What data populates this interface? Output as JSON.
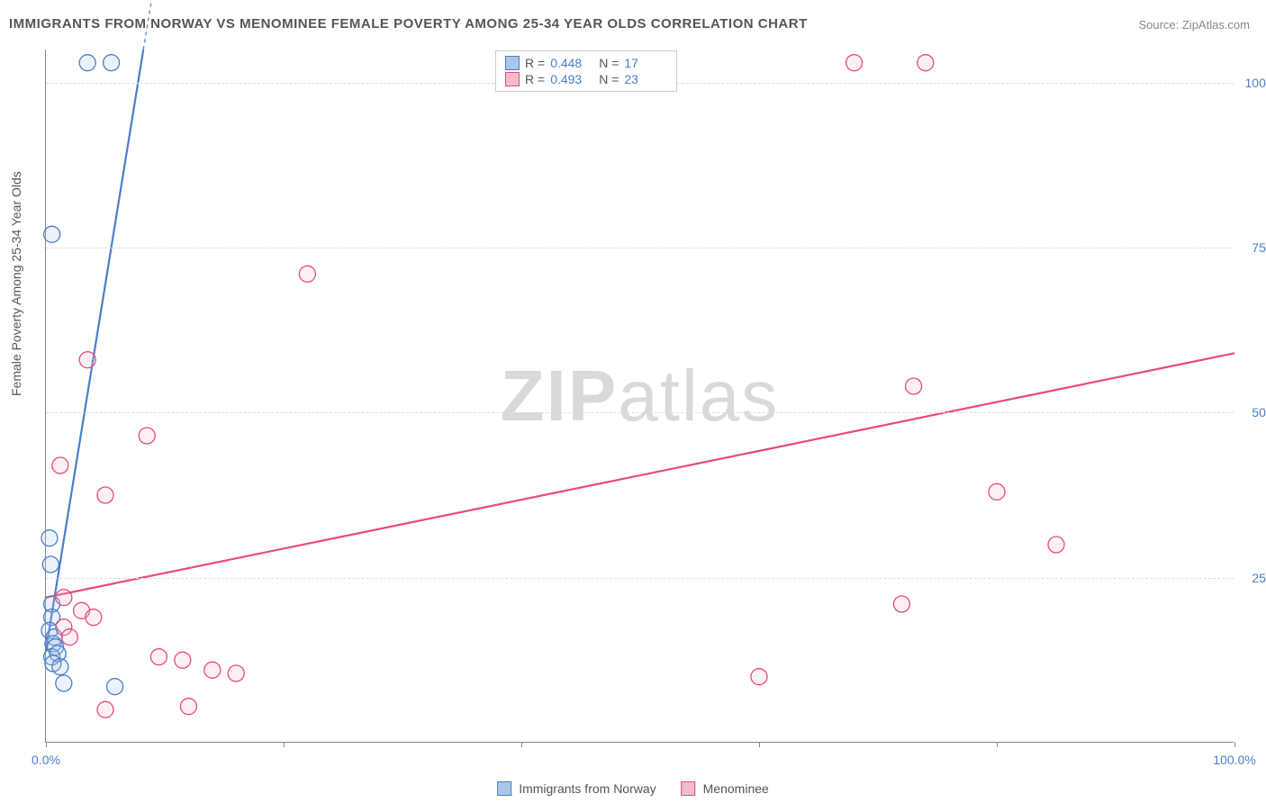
{
  "title": "IMMIGRANTS FROM NORWAY VS MENOMINEE FEMALE POVERTY AMONG 25-34 YEAR OLDS CORRELATION CHART",
  "source_label": "Source: ",
  "source_value": "ZipAtlas.com",
  "y_axis_label": "Female Poverty Among 25-34 Year Olds",
  "watermark_a": "ZIP",
  "watermark_b": "atlas",
  "chart": {
    "type": "scatter",
    "xlim": [
      0,
      100
    ],
    "ylim": [
      0,
      105
    ],
    "x_ticks": [
      0,
      20,
      40,
      60,
      80,
      100
    ],
    "y_ticks": [
      25,
      50,
      75,
      100
    ],
    "x_tick_labels": {
      "0": "0.0%",
      "100": "100.0%"
    },
    "y_tick_labels": {
      "25": "25.0%",
      "50": "50.0%",
      "75": "75.0%",
      "100": "100.0%"
    },
    "grid_color": "#dddddd",
    "axis_color": "#888888",
    "background_color": "#ffffff",
    "tick_label_color": "#4a7ec9",
    "marker_radius": 9,
    "marker_stroke_width": 1.3,
    "marker_fill_opacity": 0.22,
    "trend_line_width": 2.2,
    "series": [
      {
        "id": "norway",
        "label": "Immigrants from Norway",
        "color_stroke": "#4a7ec9",
        "color_fill": "#a9c6ea",
        "R": "0.448",
        "N": "17",
        "points": [
          [
            3.5,
            103
          ],
          [
            5.5,
            103
          ],
          [
            0.5,
            77
          ],
          [
            0.3,
            31
          ],
          [
            0.4,
            27
          ],
          [
            0.5,
            21
          ],
          [
            0.5,
            19
          ],
          [
            0.3,
            17
          ],
          [
            0.7,
            16
          ],
          [
            0.6,
            15
          ],
          [
            0.8,
            14.5
          ],
          [
            0.5,
            13
          ],
          [
            1.0,
            13.5
          ],
          [
            0.6,
            12
          ],
          [
            1.2,
            11.5
          ],
          [
            1.5,
            9
          ],
          [
            5.8,
            8.5
          ]
        ],
        "trend": {
          "x1": 0,
          "y1": 14,
          "x2": 8.2,
          "y2": 105,
          "dash_x2": 11.4,
          "dash_y2": 140
        }
      },
      {
        "id": "menominee",
        "label": "Menominee",
        "color_stroke": "#e94b7b",
        "color_fill": "#f6bccd",
        "R": "0.493",
        "N": "23",
        "points": [
          [
            68,
            103
          ],
          [
            74,
            103
          ],
          [
            22,
            71
          ],
          [
            3.5,
            58
          ],
          [
            8.5,
            46.5
          ],
          [
            1.2,
            42
          ],
          [
            5.0,
            37.5
          ],
          [
            73,
            54
          ],
          [
            80,
            38
          ],
          [
            85,
            30
          ],
          [
            72,
            21
          ],
          [
            60,
            10
          ],
          [
            1.5,
            22
          ],
          [
            3.0,
            20
          ],
          [
            1.5,
            17.5
          ],
          [
            2.0,
            16
          ],
          [
            4.0,
            19
          ],
          [
            9.5,
            13
          ],
          [
            11.5,
            12.5
          ],
          [
            14,
            11
          ],
          [
            16,
            10.5
          ],
          [
            5.0,
            5
          ],
          [
            12,
            5.5
          ]
        ],
        "trend": {
          "x1": 0,
          "y1": 22,
          "x2": 100,
          "y2": 59
        }
      }
    ]
  },
  "legend_top": {
    "R_label": "R =",
    "N_label": "N ="
  }
}
